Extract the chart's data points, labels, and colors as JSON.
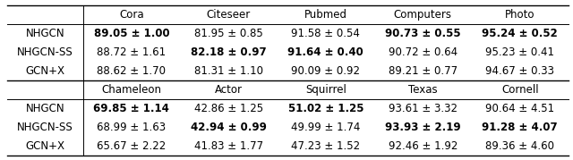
{
  "col_headers_top": [
    "Cora",
    "Citeseer",
    "Pubmed",
    "Computers",
    "Photo"
  ],
  "col_headers_bottom": [
    "Chameleon",
    "Actor",
    "Squirrel",
    "Texas",
    "Cornell"
  ],
  "row_labels": [
    "NHGCN",
    "NHGCN-SS",
    "GCN+X"
  ],
  "top_table": [
    [
      {
        "val": "89.05",
        "pm": "1.00",
        "bold_val": true,
        "bold_pm": true
      },
      {
        "val": "81.95",
        "pm": "0.85",
        "bold_val": false,
        "bold_pm": false
      },
      {
        "val": "91.58",
        "pm": "0.54",
        "bold_val": false,
        "bold_pm": false
      },
      {
        "val": "90.73",
        "pm": "0.55",
        "bold_val": true,
        "bold_pm": true
      },
      {
        "val": "95.24",
        "pm": "0.52",
        "bold_val": true,
        "bold_pm": true
      }
    ],
    [
      {
        "val": "88.72",
        "pm": "1.61",
        "bold_val": false,
        "bold_pm": false
      },
      {
        "val": "82.18",
        "pm": "0.97",
        "bold_val": true,
        "bold_pm": true
      },
      {
        "val": "91.64",
        "pm": "0.40",
        "bold_val": true,
        "bold_pm": true
      },
      {
        "val": "90.72",
        "pm": "0.64",
        "bold_val": false,
        "bold_pm": false
      },
      {
        "val": "95.23",
        "pm": "0.41",
        "bold_val": false,
        "bold_pm": false
      }
    ],
    [
      {
        "val": "88.62",
        "pm": "1.70",
        "bold_val": false,
        "bold_pm": false
      },
      {
        "val": "81.31",
        "pm": "1.10",
        "bold_val": false,
        "bold_pm": false
      },
      {
        "val": "90.09",
        "pm": "0.92",
        "bold_val": false,
        "bold_pm": false
      },
      {
        "val": "89.21",
        "pm": "0.77",
        "bold_val": false,
        "bold_pm": false
      },
      {
        "val": "94.67",
        "pm": "0.33",
        "bold_val": false,
        "bold_pm": false
      }
    ]
  ],
  "bottom_table": [
    [
      {
        "val": "69.85",
        "pm": "1.14",
        "bold_val": true,
        "bold_pm": true
      },
      {
        "val": "42.86",
        "pm": "1.25",
        "bold_val": false,
        "bold_pm": false
      },
      {
        "val": "51.02",
        "pm": "1.25",
        "bold_val": true,
        "bold_pm": true
      },
      {
        "val": "93.61",
        "pm": "3.32",
        "bold_val": false,
        "bold_pm": false
      },
      {
        "val": "90.64",
        "pm": "4.51",
        "bold_val": false,
        "bold_pm": false
      }
    ],
    [
      {
        "val": "68.99",
        "pm": "1.63",
        "bold_val": false,
        "bold_pm": false
      },
      {
        "val": "42.94",
        "pm": "0.99",
        "bold_val": true,
        "bold_pm": true
      },
      {
        "val": "49.99",
        "pm": "1.74",
        "bold_val": false,
        "bold_pm": false
      },
      {
        "val": "93.93",
        "pm": "2.19",
        "bold_val": true,
        "bold_pm": true
      },
      {
        "val": "91.28",
        "pm": "4.07",
        "bold_val": true,
        "bold_pm": true
      }
    ],
    [
      {
        "val": "65.67",
        "pm": "2.22",
        "bold_val": false,
        "bold_pm": false
      },
      {
        "val": "41.83",
        "pm": "1.77",
        "bold_val": false,
        "bold_pm": false
      },
      {
        "val": "47.23",
        "pm": "1.52",
        "bold_val": false,
        "bold_pm": false
      },
      {
        "val": "92.46",
        "pm": "1.92",
        "bold_val": false,
        "bold_pm": false
      },
      {
        "val": "89.36",
        "pm": "4.60",
        "bold_val": false,
        "bold_pm": false
      }
    ]
  ],
  "bg_color": "#ffffff",
  "font_size": 8.5,
  "header_font_size": 8.5,
  "fig_width": 6.4,
  "fig_height": 1.79,
  "dpi": 100
}
